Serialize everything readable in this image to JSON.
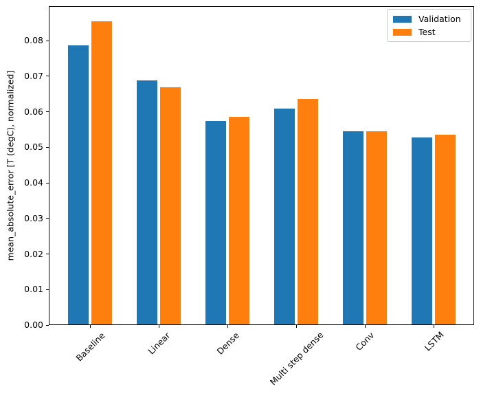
{
  "chart_data": {
    "type": "bar",
    "title": "",
    "xlabel": "",
    "ylabel": "mean_absolute_error [T (degC), normalized]",
    "categories": [
      "Baseline",
      "Linear",
      "Dense",
      "Multi step dense",
      "Conv",
      "LSTM"
    ],
    "series": [
      {
        "name": "Validation",
        "color": "#1f77b4",
        "values": [
          0.0786,
          0.0688,
          0.0574,
          0.0609,
          0.0546,
          0.0527
        ]
      },
      {
        "name": "Test",
        "color": "#ff7f0e",
        "values": [
          0.0854,
          0.0668,
          0.0585,
          0.0636,
          0.0545,
          0.0536
        ]
      }
    ],
    "ylim": [
      0,
      0.0897
    ],
    "ytick_labels": [
      "0.00",
      "0.01",
      "0.02",
      "0.03",
      "0.04",
      "0.05",
      "0.06",
      "0.07",
      "0.08"
    ],
    "xtick_rotation_deg": 45,
    "grid": false,
    "legend_position": "upper right"
  }
}
